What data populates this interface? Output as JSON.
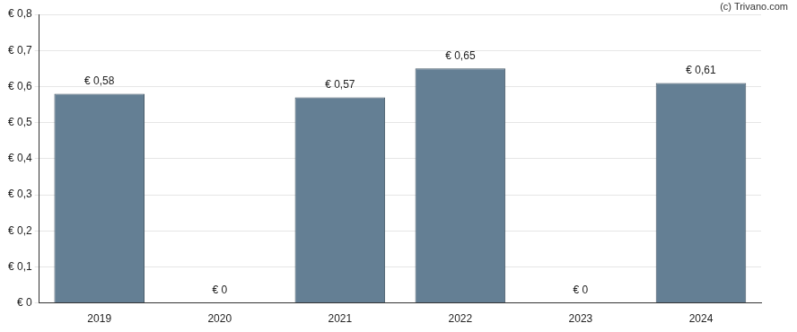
{
  "chart_data": {
    "type": "bar",
    "annotation": "(c) Trivano.com",
    "categories": [
      "2019",
      "2020",
      "2021",
      "2022",
      "2023",
      "2024"
    ],
    "values": [
      0.58,
      0,
      0.57,
      0.65,
      0,
      0.61
    ],
    "value_labels": [
      "€ 0,58",
      "€ 0",
      "€ 0,57",
      "€ 0,65",
      "€ 0",
      "€ 0,61"
    ],
    "data_labels": true,
    "color": "#647f94",
    "ylim": [
      0,
      0.8
    ],
    "yticks": [
      {
        "value": 0,
        "label": "€ 0"
      },
      {
        "value": 0.1,
        "label": "€ 0,1"
      },
      {
        "value": 0.2,
        "label": "€ 0,2"
      },
      {
        "value": 0.3,
        "label": "€ 0,3"
      },
      {
        "value": 0.4,
        "label": "€ 0,4"
      },
      {
        "value": 0.5,
        "label": "€ 0,5"
      },
      {
        "value": 0.6,
        "label": "€ 0,6"
      },
      {
        "value": 0.7,
        "label": "€ 0,7"
      },
      {
        "value": 0.8,
        "label": "€ 0,8"
      }
    ],
    "grid": true
  }
}
